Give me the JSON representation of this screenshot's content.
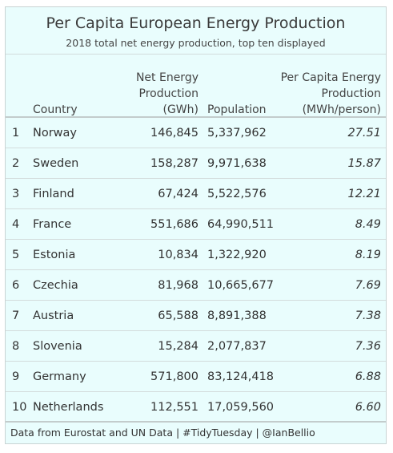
{
  "chart_data": {
    "type": "table",
    "title": "Per Capita European Energy Production",
    "subtitle": "2018 total net energy production, top ten displayed",
    "columns": {
      "country": "Country",
      "net_energy": [
        "Net Energy",
        "Production",
        "(GWh)"
      ],
      "population": "Population",
      "per_capita": [
        "Per Capita Energy",
        "Production",
        "(MWh/person)"
      ]
    },
    "rows": [
      {
        "rank": "1",
        "country": "Norway",
        "net": "146,845",
        "population": "5,337,962",
        "per_capita": "27.51"
      },
      {
        "rank": "2",
        "country": "Sweden",
        "net": "158,287",
        "population": "9,971,638",
        "per_capita": "15.87"
      },
      {
        "rank": "3",
        "country": "Finland",
        "net": "67,424",
        "population": "5,522,576",
        "per_capita": "12.21"
      },
      {
        "rank": "4",
        "country": "France",
        "net": "551,686",
        "population": "64,990,511",
        "per_capita": "8.49"
      },
      {
        "rank": "5",
        "country": "Estonia",
        "net": "10,834",
        "population": "1,322,920",
        "per_capita": "8.19"
      },
      {
        "rank": "6",
        "country": "Czechia",
        "net": "81,968",
        "population": "10,665,677",
        "per_capita": "7.69"
      },
      {
        "rank": "7",
        "country": "Austria",
        "net": "65,588",
        "population": "8,891,388",
        "per_capita": "7.38"
      },
      {
        "rank": "8",
        "country": "Slovenia",
        "net": "15,284",
        "population": "2,077,837",
        "per_capita": "7.36"
      },
      {
        "rank": "9",
        "country": "Germany",
        "net": "571,800",
        "population": "83,124,418",
        "per_capita": "6.88"
      },
      {
        "rank": "10",
        "country": "Netherlands",
        "net": "112,551",
        "population": "17,059,560",
        "per_capita": "6.60"
      }
    ],
    "source_note": "Data from Eurostat and UN Data | #TidyTuesday | @IanBellio",
    "background_color": "#e9fdfd"
  }
}
